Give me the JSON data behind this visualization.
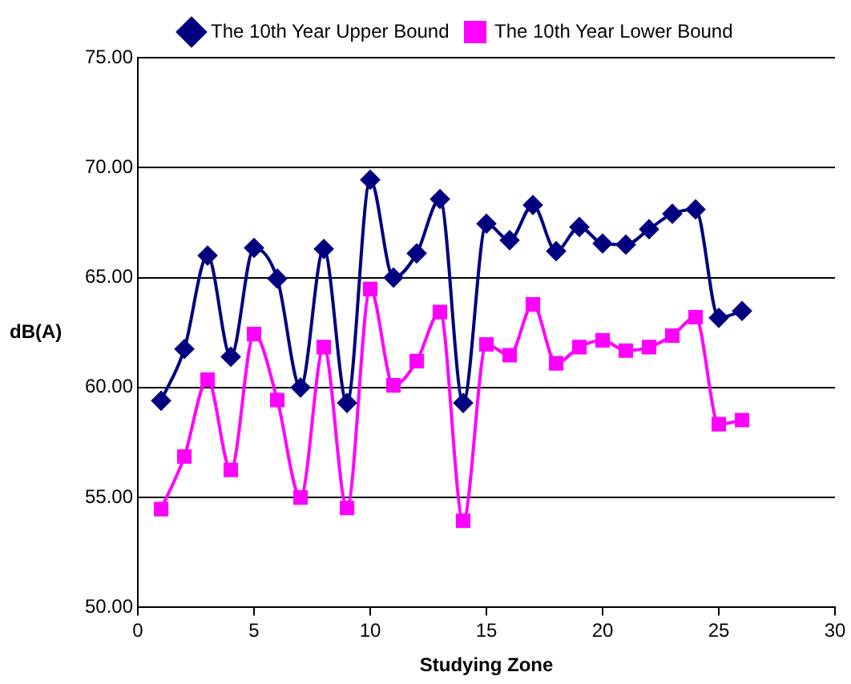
{
  "chart_data": {
    "type": "line",
    "xlabel": "Studying Zone",
    "ylabel": "dB(A)",
    "x": [
      1,
      2,
      3,
      4,
      5,
      6,
      7,
      8,
      9,
      10,
      11,
      12,
      13,
      14,
      15,
      16,
      17,
      18,
      19,
      20,
      21,
      22,
      23,
      24,
      25,
      26
    ],
    "series": [
      {
        "name": "The 10th Year Upper Bound",
        "color": "#000080",
        "marker": "diamond",
        "values": [
          59.4,
          61.75,
          66.0,
          61.4,
          66.35,
          64.95,
          60.0,
          66.3,
          59.3,
          69.45,
          65.0,
          66.1,
          68.57,
          59.3,
          67.45,
          66.7,
          68.3,
          66.2,
          67.3,
          66.55,
          66.5,
          67.2,
          67.9,
          68.1,
          63.17,
          63.48
        ]
      },
      {
        "name": "The 10th Year Lower Bound",
        "color": "#ff00ff",
        "marker": "square",
        "values": [
          54.47,
          56.86,
          60.36,
          56.25,
          62.43,
          59.43,
          55.0,
          61.84,
          54.52,
          64.48,
          60.1,
          61.2,
          63.43,
          53.94,
          61.96,
          61.47,
          63.78,
          61.1,
          61.84,
          62.15,
          61.68,
          61.84,
          62.36,
          63.2,
          58.33,
          58.52
        ]
      }
    ],
    "xlim": [
      0,
      30
    ],
    "xticks": [
      0,
      5,
      10,
      15,
      20,
      25,
      30
    ],
    "ylim": [
      50,
      75
    ],
    "yticks": [
      {
        "value": 50,
        "label": "50.00"
      },
      {
        "value": 55,
        "label": "55.00"
      },
      {
        "value": 60,
        "label": "60.00"
      },
      {
        "value": 65,
        "label": "65.00"
      },
      {
        "value": 70,
        "label": "70.00"
      },
      {
        "value": 75,
        "label": "75.00"
      }
    ],
    "grid": "y",
    "legend": "top"
  }
}
